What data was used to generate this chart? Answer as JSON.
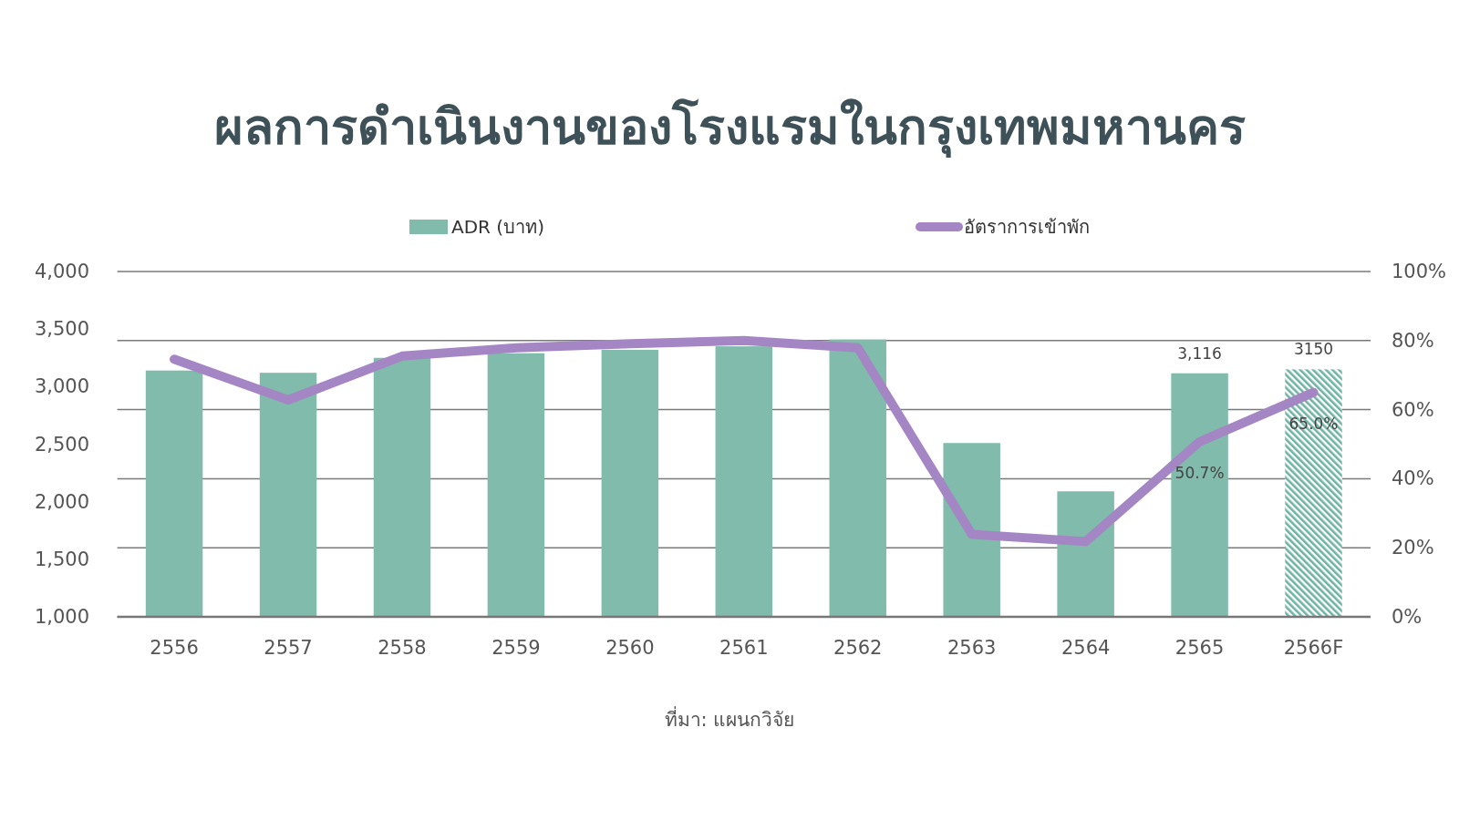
{
  "chart_data": {
    "type": "bar",
    "title": "ผลการดำเนินงานของโรงแรมในกรุงเทพมหานคร",
    "categories": [
      "2556",
      "2557",
      "2558",
      "2559",
      "2560",
      "2561",
      "2562",
      "2563",
      "2564",
      "2565",
      "2566F"
    ],
    "series": [
      {
        "name": "ADR (บาท)",
        "color": "#80bbab",
        "colors": [
          "#80bbab",
          "#80bbab",
          "#80bbab",
          "#80bbab",
          "#80bbab",
          "#80bbab",
          "#80bbab",
          "#80bbab",
          "#80bbab",
          "#80bbab",
          "#6fb3a2"
        ],
        "values": [
          3140,
          3120,
          3250,
          3290,
          3320,
          3350,
          3410,
          2510,
          2090,
          3116,
          3150
        ],
        "value_labels": [
          null,
          null,
          null,
          null,
          null,
          null,
          null,
          null,
          null,
          "3,116",
          "3150"
        ]
      },
      {
        "name": "อัตราการเข้าพัก",
        "type": "line",
        "axis": "y2",
        "color": "#a586c4",
        "values": [
          74.6,
          62.8,
          75.5,
          77.9,
          79.1,
          80.0,
          77.9,
          23.9,
          21.8,
          50.7,
          65.0
        ],
        "value_labels": [
          null,
          null,
          null,
          null,
          null,
          null,
          null,
          null,
          null,
          "50.7%",
          "65.0%"
        ]
      }
    ],
    "ylim": [
      1000,
      4000
    ],
    "yticks": [
      {
        "value": 1000,
        "label": "1,000"
      },
      {
        "value": 1500,
        "label": "1,500"
      },
      {
        "value": 2000,
        "label": "2,000"
      },
      {
        "value": 2500,
        "label": "2,500"
      },
      {
        "value": 3000,
        "label": "3,000"
      },
      {
        "value": 3500,
        "label": "3,500"
      },
      {
        "value": 4000,
        "label": "4,000"
      }
    ],
    "y2lim": [
      0,
      100
    ],
    "y2ticks": [
      {
        "value": 0,
        "label": "0%"
      },
      {
        "value": 20,
        "label": "20%"
      },
      {
        "value": 40,
        "label": "40%"
      },
      {
        "value": 60,
        "label": "60%"
      },
      {
        "value": 80,
        "label": "80%"
      },
      {
        "value": 100,
        "label": "100%"
      }
    ],
    "grid": true,
    "legend": "top",
    "annotations": [
      "ที่มา: แผนกวิจัย"
    ]
  }
}
